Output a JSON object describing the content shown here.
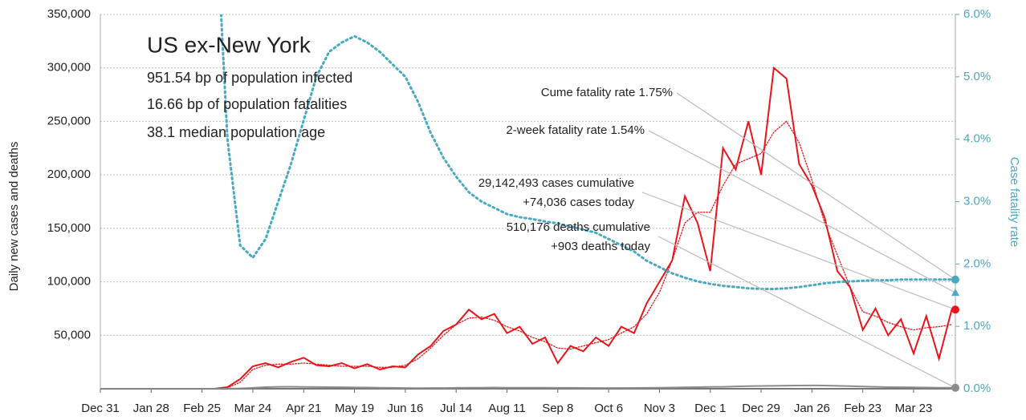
{
  "chart_data": {
    "type": "line",
    "title": "US ex-New York",
    "stats": [
      "951.54 bp of population infected",
      "16.66 bp of population fatalities",
      "38.1 median population age"
    ],
    "y_label": "Daily new cases and deaths",
    "y2_label": "Case fatality rate",
    "x": [
      0,
      7,
      14,
      21,
      28,
      35,
      42,
      49,
      56,
      63,
      70,
      77,
      84,
      91,
      98,
      105,
      112,
      119,
      126,
      133,
      140,
      147,
      154,
      161,
      168,
      175,
      182,
      189,
      196,
      203,
      210,
      217,
      224,
      231,
      238,
      245,
      252,
      259,
      266,
      273,
      280,
      287,
      294,
      301,
      308,
      315,
      322,
      329,
      336,
      343,
      350,
      357,
      364,
      371,
      378,
      385,
      392,
      399,
      406,
      413,
      420,
      427,
      434,
      441,
      448,
      455,
      462,
      469
    ],
    "xlim": [
      0,
      471
    ],
    "xticks": [
      {
        "value": 0,
        "label": "Dec 31"
      },
      {
        "value": 28,
        "label": "Jan 28"
      },
      {
        "value": 56,
        "label": "Feb 25"
      },
      {
        "value": 84,
        "label": "Mar 24"
      },
      {
        "value": 112,
        "label": "Apr 21"
      },
      {
        "value": 140,
        "label": "May 19"
      },
      {
        "value": 168,
        "label": "Jun 16"
      },
      {
        "value": 196,
        "label": "Jul 14"
      },
      {
        "value": 224,
        "label": "Aug 11"
      },
      {
        "value": 252,
        "label": "Sep 8"
      },
      {
        "value": 280,
        "label": "Oct 6"
      },
      {
        "value": 308,
        "label": "Nov 3"
      },
      {
        "value": 336,
        "label": "Dec 1"
      },
      {
        "value": 364,
        "label": "Dec 29"
      },
      {
        "value": 392,
        "label": "Jan 26"
      },
      {
        "value": 420,
        "label": "Feb 23"
      },
      {
        "value": 448,
        "label": "Mar 23"
      }
    ],
    "ylim": [
      0,
      350000
    ],
    "yticks": [
      {
        "value": 50000,
        "label": "50,000"
      },
      {
        "value": 100000,
        "label": "100,000"
      },
      {
        "value": 150000,
        "label": "150,000"
      },
      {
        "value": 200000,
        "label": "200,000"
      },
      {
        "value": 250000,
        "label": "250,000"
      },
      {
        "value": 300000,
        "label": "300,000"
      },
      {
        "value": 350000,
        "label": "350,000"
      }
    ],
    "y2lim": [
      0,
      6
    ],
    "y2ticks": [
      {
        "value": 0,
        "label": "0.0%"
      },
      {
        "value": 1,
        "label": "1.0%"
      },
      {
        "value": 2,
        "label": "2.0%"
      },
      {
        "value": 3,
        "label": "3.0%"
      },
      {
        "value": 4,
        "label": "4.0%"
      },
      {
        "value": 5,
        "label": "5.0%"
      },
      {
        "value": 6,
        "label": "6.0%"
      }
    ],
    "grid": true,
    "series": [
      {
        "color": "#e8161b",
        "style": "solid",
        "width": 2,
        "values": [
          0,
          0,
          0,
          0,
          0,
          0,
          0,
          0,
          0,
          100,
          1500,
          9000,
          21000,
          24000,
          20000,
          25000,
          29000,
          22000,
          21000,
          24000,
          19000,
          23000,
          18000,
          21000,
          20000,
          32000,
          40000,
          54000,
          60000,
          74000,
          65000,
          70000,
          52000,
          58000,
          42000,
          48000,
          24000,
          40000,
          35000,
          48000,
          40000,
          58000,
          52000,
          80000,
          100000,
          120000,
          180000,
          155000,
          110000,
          225000,
          205000,
          250000,
          200000,
          300000,
          290000,
          210000,
          190000,
          160000,
          110000,
          95000,
          55000,
          75000,
          50000,
          65000,
          33000,
          68000,
          28000,
          74036
        ]
      },
      {
        "color": "#e8161b",
        "style": "dotted",
        "width": 1.3,
        "values": [
          0,
          0,
          0,
          0,
          0,
          0,
          0,
          0,
          0,
          0,
          800,
          6000,
          18000,
          22000,
          23000,
          23000,
          24000,
          23000,
          22000,
          21000,
          21000,
          21000,
          20000,
          20000,
          22000,
          28000,
          38000,
          50000,
          60000,
          66000,
          67000,
          64000,
          58000,
          54000,
          48000,
          44000,
          38000,
          37000,
          40000,
          43000,
          46000,
          52000,
          58000,
          70000,
          90000,
          120000,
          155000,
          165000,
          165000,
          190000,
          210000,
          215000,
          220000,
          240000,
          250000,
          230000,
          195000,
          155000,
          125000,
          95000,
          72000,
          68000,
          62000,
          58000,
          55000,
          57000,
          58000,
          60000
        ]
      },
      {
        "color": "#8c8c8c",
        "style": "solid",
        "width": 2,
        "values": [
          0,
          0,
          0,
          0,
          0,
          0,
          0,
          0,
          0,
          10,
          50,
          300,
          800,
          1500,
          1800,
          1900,
          1700,
          1600,
          1500,
          1400,
          1200,
          1100,
          1000,
          800,
          700,
          600,
          650,
          700,
          800,
          900,
          1000,
          1100,
          1000,
          1000,
          950,
          900,
          800,
          800,
          750,
          700,
          700,
          700,
          750,
          800,
          900,
          1100,
          1300,
          1500,
          1700,
          1800,
          2200,
          2500,
          2600,
          2700,
          2900,
          3000,
          3100,
          3000,
          2700,
          2500,
          2100,
          1800,
          1500,
          1400,
          1300,
          1100,
          1000,
          903
        ]
      },
      {
        "color": "#4aa8c0",
        "style": "dotted",
        "width": 3,
        "axis": "y2",
        "values": [
          null,
          null,
          null,
          null,
          null,
          null,
          null,
          null,
          null,
          8.0,
          4.0,
          2.3,
          2.1,
          2.4,
          3.0,
          3.6,
          4.3,
          5.0,
          5.4,
          5.55,
          5.65,
          5.55,
          5.4,
          5.2,
          5.0,
          4.6,
          4.1,
          3.7,
          3.4,
          3.15,
          3.0,
          2.9,
          2.8,
          2.75,
          2.72,
          2.68,
          2.65,
          2.6,
          2.55,
          2.5,
          2.4,
          2.3,
          2.2,
          2.05,
          1.95,
          1.85,
          1.78,
          1.72,
          1.68,
          1.65,
          1.63,
          1.61,
          1.6,
          1.6,
          1.61,
          1.63,
          1.66,
          1.69,
          1.71,
          1.72,
          1.73,
          1.74,
          1.74,
          1.75,
          1.75,
          1.75,
          1.75,
          1.75
        ]
      }
    ],
    "annotations": [
      {
        "lines": [
          "Cume fatality rate 1.75%"
        ],
        "value": 1.75,
        "axis": "y2",
        "marker": "circle",
        "color": "#4aa8c0"
      },
      {
        "lines": [
          "2-week fatality rate 1.54%"
        ],
        "value": 1.54,
        "axis": "y2",
        "marker": "triangle",
        "color": "#4aa8c0"
      },
      {
        "lines": [
          "29,142,493 cases cumulative",
          "+74,036 cases today"
        ],
        "value": 74036,
        "axis": "y",
        "marker": "circle",
        "color": "#e8161b"
      },
      {
        "lines": [
          "510,176 deaths cumulative",
          "+903 deaths today"
        ],
        "value": 903,
        "axis": "y",
        "marker": "circle",
        "color": "#8c8c8c"
      }
    ]
  }
}
